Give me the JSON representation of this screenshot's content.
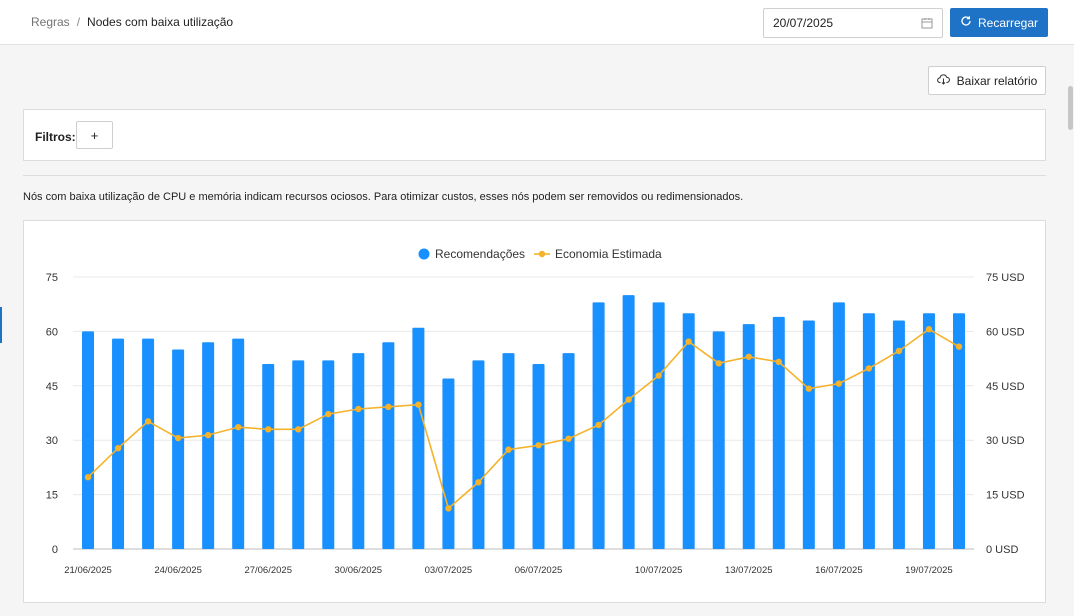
{
  "breadcrumb": {
    "parent": "Regras",
    "separator": "/",
    "current": "Nodes com baixa utilização"
  },
  "date_picker": {
    "value": "20/07/2025",
    "icon": "calendar-icon"
  },
  "reload_button": {
    "label": "Recarregar",
    "icon": "refresh-icon"
  },
  "download_button": {
    "label": "Baixar relatório",
    "icon": "cloud-download-icon"
  },
  "filters": {
    "label": "Filtros:",
    "add_label": "+"
  },
  "description": "Nós com baixa utilização de CPU e memória indicam recursos ociosos. Para otimizar custos, esses nós podem ser removidos ou redimensionados.",
  "colors": {
    "accent": "#1f73c6",
    "bars": "#1890ff",
    "line": "#f5b22a"
  },
  "chart_data": {
    "type": "bar",
    "legend_position": "top-center",
    "grid": true,
    "categories": [
      "21/06/2025",
      "22/06/2025",
      "23/06/2025",
      "24/06/2025",
      "25/06/2025",
      "26/06/2025",
      "27/06/2025",
      "28/06/2025",
      "29/06/2025",
      "30/06/2025",
      "01/07/2025",
      "02/07/2025",
      "03/07/2025",
      "04/07/2025",
      "05/07/2025",
      "06/07/2025",
      "07/07/2025",
      "08/07/2025",
      "09/07/2025",
      "10/07/2025",
      "11/07/2025",
      "12/07/2025",
      "13/07/2025",
      "14/07/2025",
      "15/07/2025",
      "16/07/2025",
      "17/07/2025",
      "18/07/2025",
      "19/07/2025",
      "20/07/2025"
    ],
    "x_tick_labels": [
      "21/06/2025",
      "24/06/2025",
      "27/06/2025",
      "30/06/2025",
      "03/07/2025",
      "06/07/2025",
      "10/07/2025",
      "13/07/2025",
      "16/07/2025",
      "19/07/2025"
    ],
    "x_tick_indices": [
      0,
      3,
      6,
      9,
      12,
      15,
      19,
      22,
      25,
      28
    ],
    "y_left": {
      "ticks": [
        "0",
        "15",
        "30",
        "45",
        "60",
        "75"
      ],
      "ylim": [
        0,
        75
      ]
    },
    "y_right": {
      "ticks": [
        "0 USD",
        "15 USD",
        "30 USD",
        "45 USD",
        "60 USD",
        "75 USD"
      ],
      "ylim": [
        0,
        75
      ]
    },
    "series": [
      {
        "name": "Recomendações",
        "type": "bar",
        "axis": "left",
        "values": [
          60,
          58,
          58,
          55,
          57,
          58,
          51,
          52,
          52,
          54,
          57,
          61,
          47,
          52,
          54,
          51,
          54,
          68,
          70,
          68,
          65,
          60,
          62,
          64,
          63,
          68,
          65,
          63,
          65,
          65
        ]
      },
      {
        "name": "Economia Estimada",
        "type": "line",
        "axis": "right",
        "values": [
          19.8,
          27.8,
          35.2,
          30.6,
          31.4,
          33.6,
          33.0,
          33.0,
          37.2,
          38.6,
          39.2,
          39.8,
          11.2,
          18.4,
          27.4,
          28.6,
          30.4,
          34.2,
          41.2,
          47.8,
          57.2,
          51.2,
          53.0,
          51.6,
          44.2,
          45.6,
          49.8,
          54.6,
          60.6,
          55.8
        ]
      }
    ]
  }
}
